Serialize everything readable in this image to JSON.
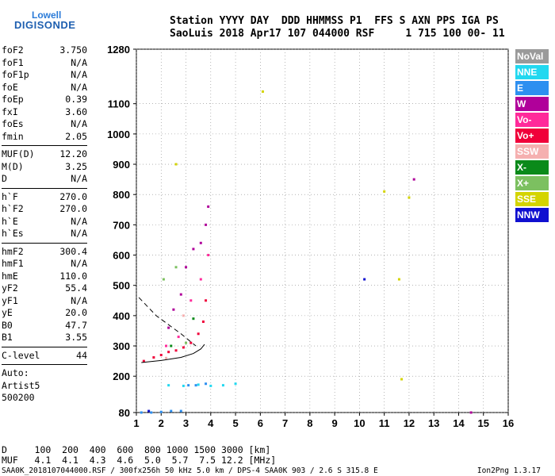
{
  "logo": {
    "top": "Lowell",
    "bottom": "DIGISONDE"
  },
  "header": {
    "row1": "Station YYYY DAY  DDD HHMMSS P1  FFS S AXN PPS IGA PS",
    "row2": "SaoLuis 2018 Apr17 107 044000 RSF     1 715 100 00- 11"
  },
  "params": [
    {
      "name": "foF2",
      "value": "3.750"
    },
    {
      "name": "foF1",
      "value": "N/A"
    },
    {
      "name": "foF1p",
      "value": "N/A"
    },
    {
      "name": "foE",
      "value": "N/A"
    },
    {
      "name": "foEp",
      "value": "0.39"
    },
    {
      "name": "fxI",
      "value": "3.60"
    },
    {
      "name": "foEs",
      "value": "N/A"
    },
    {
      "name": "fmin",
      "value": "2.05"
    },
    {
      "sep": true
    },
    {
      "name": "MUF(D)",
      "value": "12.20"
    },
    {
      "name": "M(D)",
      "value": "3.25"
    },
    {
      "name": "D",
      "value": "N/A"
    },
    {
      "sep": true
    },
    {
      "name": "h`F",
      "value": "270.0"
    },
    {
      "name": "h`F2",
      "value": "270.0"
    },
    {
      "name": "h`E",
      "value": "N/A"
    },
    {
      "name": "h`Es",
      "value": "N/A"
    },
    {
      "sep": true
    },
    {
      "name": "hmF2",
      "value": "300.4"
    },
    {
      "name": "hmF1",
      "value": "N/A"
    },
    {
      "name": "hmE",
      "value": "110.0"
    },
    {
      "name": "yF2",
      "value": "55.4"
    },
    {
      "name": "yF1",
      "value": "N/A"
    },
    {
      "name": "yE",
      "value": "20.0"
    },
    {
      "name": "B0",
      "value": "47.7"
    },
    {
      "name": "B1",
      "value": "3.55"
    },
    {
      "sep": true
    },
    {
      "name": "C-level",
      "value": "44"
    },
    {
      "sep": true
    },
    {
      "plain": "Auto:"
    },
    {
      "plain": "Artist5"
    },
    {
      "plain": "500200"
    }
  ],
  "legend": [
    {
      "label": "NoVal",
      "color": "#9a9a9a"
    },
    {
      "label": "NNE",
      "color": "#22d8f0"
    },
    {
      "label": "E",
      "color": "#2d8ff0"
    },
    {
      "label": "W",
      "color": "#b0009a"
    },
    {
      "label": "Vo-",
      "color": "#ff2a9a"
    },
    {
      "label": "Vo+",
      "color": "#f0003a"
    },
    {
      "label": "SSW",
      "color": "#f5b0b0"
    },
    {
      "label": "X-",
      "color": "#0a8a1a"
    },
    {
      "label": "X+",
      "color": "#7cc060"
    },
    {
      "label": "SSE",
      "color": "#d4d400"
    },
    {
      "label": "NNW",
      "color": "#1010d0"
    }
  ],
  "footer": {
    "d_row": "D     100  200  400  600  800 1000 1500 3000 [km]",
    "muf_row": "MUF   4.1  4.1  4.3  4.6  5.0  5.7  7.5 12.2 [MHz]",
    "info": "SAA0K_2018107044000.RSF / 300fx256h 50 kHz 5.0 km / DPS-4 SAA0K 903 / 2.6 S 315.8 E",
    "version": "Ion2Png 1.3.17"
  },
  "chart_data": {
    "type": "scatter",
    "xlabel": "",
    "ylabel": "",
    "xlim": [
      1,
      16
    ],
    "ylim": [
      80,
      1280
    ],
    "x_ticks": [
      1,
      2,
      3,
      4,
      5,
      6,
      7,
      8,
      9,
      10,
      11,
      12,
      13,
      14,
      15,
      16
    ],
    "y_ticks": [
      80,
      200,
      300,
      400,
      500,
      600,
      700,
      800,
      900,
      1000,
      1100,
      1280
    ],
    "grid": true,
    "series": [
      {
        "name": "E",
        "color": "#2d8ff0",
        "points": [
          [
            1.2,
            80
          ],
          [
            1.6,
            80
          ],
          [
            2.0,
            82
          ],
          [
            2.4,
            85
          ],
          [
            2.8,
            85
          ],
          [
            3.1,
            170
          ],
          [
            3.4,
            170
          ],
          [
            3.8,
            175
          ]
        ]
      },
      {
        "name": "W",
        "color": "#b0009a",
        "points": [
          [
            2.3,
            360
          ],
          [
            2.5,
            420
          ],
          [
            2.8,
            470
          ],
          [
            3.0,
            560
          ],
          [
            3.3,
            620
          ],
          [
            3.6,
            640
          ],
          [
            3.8,
            700
          ],
          [
            3.9,
            760
          ],
          [
            12.2,
            850
          ],
          [
            14.5,
            80
          ]
        ]
      },
      {
        "name": "Vo+",
        "color": "#f0003a",
        "points": [
          [
            1.3,
            250
          ],
          [
            1.7,
            262
          ],
          [
            2.0,
            270
          ],
          [
            2.3,
            280
          ],
          [
            2.6,
            285
          ],
          [
            2.9,
            295
          ],
          [
            3.2,
            310
          ],
          [
            3.5,
            340
          ],
          [
            3.7,
            380
          ],
          [
            3.8,
            450
          ]
        ]
      },
      {
        "name": "Vo-",
        "color": "#ff2a9a",
        "points": [
          [
            2.2,
            300
          ],
          [
            2.7,
            330
          ],
          [
            3.2,
            450
          ],
          [
            3.6,
            520
          ],
          [
            3.9,
            600
          ]
        ]
      },
      {
        "name": "X+",
        "color": "#7cc060",
        "points": [
          [
            2.1,
            520
          ],
          [
            2.6,
            560
          ],
          [
            3.0,
            310
          ]
        ]
      },
      {
        "name": "X-",
        "color": "#0a8a1a",
        "points": [
          [
            2.4,
            300
          ],
          [
            3.3,
            390
          ]
        ]
      },
      {
        "name": "NNE",
        "color": "#22d8f0",
        "points": [
          [
            2.3,
            170
          ],
          [
            2.9,
            168
          ],
          [
            3.5,
            172
          ],
          [
            4.0,
            168
          ],
          [
            4.5,
            170
          ],
          [
            5.0,
            175
          ]
        ]
      },
      {
        "name": "SSE",
        "color": "#d4d400",
        "points": [
          [
            2.6,
            900
          ],
          [
            11.0,
            810
          ],
          [
            11.6,
            520
          ],
          [
            11.7,
            190
          ],
          [
            12.0,
            790
          ],
          [
            6.1,
            1140
          ]
        ]
      },
      {
        "name": "NNW",
        "color": "#1010d0",
        "points": [
          [
            1.5,
            85
          ],
          [
            10.2,
            520
          ]
        ]
      },
      {
        "name": "SSW",
        "color": "#f5b0b0",
        "points": [
          [
            2.2,
            260
          ],
          [
            2.9,
            400
          ]
        ]
      }
    ],
    "profile_curve": [
      [
        1.2,
        245
      ],
      [
        2.0,
        252
      ],
      [
        2.8,
        262
      ],
      [
        3.3,
        275
      ],
      [
        3.6,
        290
      ],
      [
        3.75,
        305
      ]
    ],
    "dashed_trace": [
      [
        1.1,
        460
      ],
      [
        1.8,
        400
      ],
      [
        2.8,
        340
      ],
      [
        3.4,
        300
      ]
    ]
  }
}
